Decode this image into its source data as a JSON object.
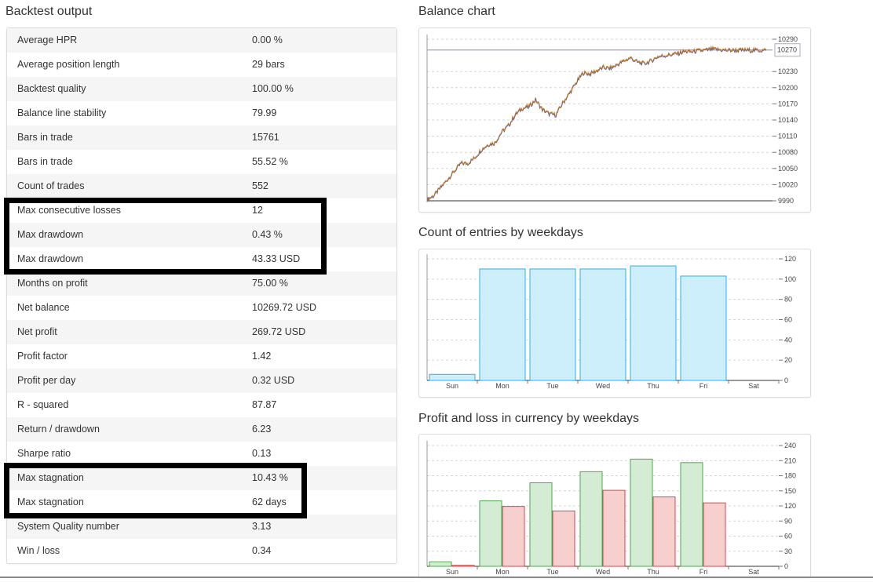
{
  "backtest": {
    "title": "Backtest output",
    "rows": [
      {
        "label": "Average HPR",
        "value": "0.00 %"
      },
      {
        "label": "Average position length",
        "value": "29 bars"
      },
      {
        "label": "Backtest quality",
        "value": "100.00 %"
      },
      {
        "label": "Balance line stability",
        "value": "79.99"
      },
      {
        "label": "Bars in trade",
        "value": "15761"
      },
      {
        "label": "Bars in trade",
        "value": "55.52 %"
      },
      {
        "label": "Count of trades",
        "value": "552"
      },
      {
        "label": "Max consecutive losses",
        "value": "12"
      },
      {
        "label": "Max drawdown",
        "value": "0.43 %"
      },
      {
        "label": "Max drawdown",
        "value": "43.33 USD"
      },
      {
        "label": "Months on profit",
        "value": "75.00 %"
      },
      {
        "label": "Net balance",
        "value": "10269.72 USD"
      },
      {
        "label": "Net profit",
        "value": "269.72 USD"
      },
      {
        "label": "Profit factor",
        "value": "1.42"
      },
      {
        "label": "Profit per day",
        "value": "0.32 USD"
      },
      {
        "label": "R - squared",
        "value": "87.87"
      },
      {
        "label": "Return / drawdown",
        "value": "6.23"
      },
      {
        "label": "Sharpe ratio",
        "value": "0.13"
      },
      {
        "label": "Max stagnation",
        "value": "10.43 %"
      },
      {
        "label": "Max stagnation",
        "value": "62 days"
      },
      {
        "label": "System Quality number",
        "value": "3.13"
      },
      {
        "label": "Win / loss",
        "value": "0.34"
      }
    ]
  },
  "chart_data": [
    {
      "type": "line",
      "title": "Balance chart",
      "y_ticks": [
        "10290",
        "10230",
        "10200",
        "10170",
        "10140",
        "10110",
        "10080",
        "10050",
        "10020",
        "9990"
      ],
      "current_value_label": "10270",
      "ylim": [
        9990,
        10290
      ],
      "grid": true,
      "x": [
        0,
        2,
        4,
        6,
        8,
        10,
        12,
        14,
        16,
        18,
        20,
        22,
        24,
        26,
        28,
        30,
        32,
        34,
        36,
        38,
        40,
        42,
        44,
        46,
        48,
        50,
        52,
        54,
        56,
        58,
        60,
        62,
        64,
        66,
        68,
        70,
        72,
        74,
        76,
        78,
        80,
        82,
        84,
        86,
        88,
        90,
        92,
        94,
        96,
        98,
        100
      ],
      "values": [
        9993,
        10000,
        10015,
        10030,
        10045,
        10060,
        10060,
        10070,
        10085,
        10095,
        10098,
        10118,
        10130,
        10150,
        10162,
        10165,
        10178,
        10160,
        10152,
        10150,
        10172,
        10190,
        10210,
        10228,
        10226,
        10232,
        10238,
        10236,
        10243,
        10250,
        10256,
        10248,
        10245,
        10250,
        10258,
        10260,
        10262,
        10264,
        10268,
        10267,
        10269,
        10270,
        10272,
        10271,
        10270,
        10270,
        10270,
        10270,
        10270,
        10270,
        10270
      ]
    },
    {
      "type": "bar",
      "title": "Count of entries by weekdays",
      "categories": [
        "Sun",
        "Mon",
        "Tue",
        "Wed",
        "Thu",
        "Fri",
        "Sat"
      ],
      "values": [
        6,
        110,
        110,
        110,
        113,
        103,
        0
      ],
      "y_ticks": [
        "120",
        "100",
        "80",
        "60",
        "40",
        "20",
        "0"
      ],
      "ylim": [
        0,
        120
      ],
      "color": "#cdeefb",
      "edge_color": "#2ab0e4"
    },
    {
      "type": "bar",
      "title": "Profit and loss in currency by weekdays",
      "categories": [
        "Sun",
        "Mon",
        "Tue",
        "Wed",
        "Thu",
        "Fri",
        "Sat"
      ],
      "series": [
        {
          "values": [
            9,
            130,
            166,
            188,
            213,
            206,
            0
          ],
          "color": "#d4ecd3",
          "edge_color": "#4caa4c"
        },
        {
          "values": [
            2,
            119,
            110,
            151,
            138,
            126,
            0
          ],
          "color": "#f7cfcf",
          "edge_color": "#d24a4a"
        }
      ],
      "y_ticks": [
        "240",
        "210",
        "180",
        "150",
        "120",
        "90",
        "60",
        "30",
        "0"
      ],
      "ylim": [
        0,
        240
      ]
    }
  ]
}
